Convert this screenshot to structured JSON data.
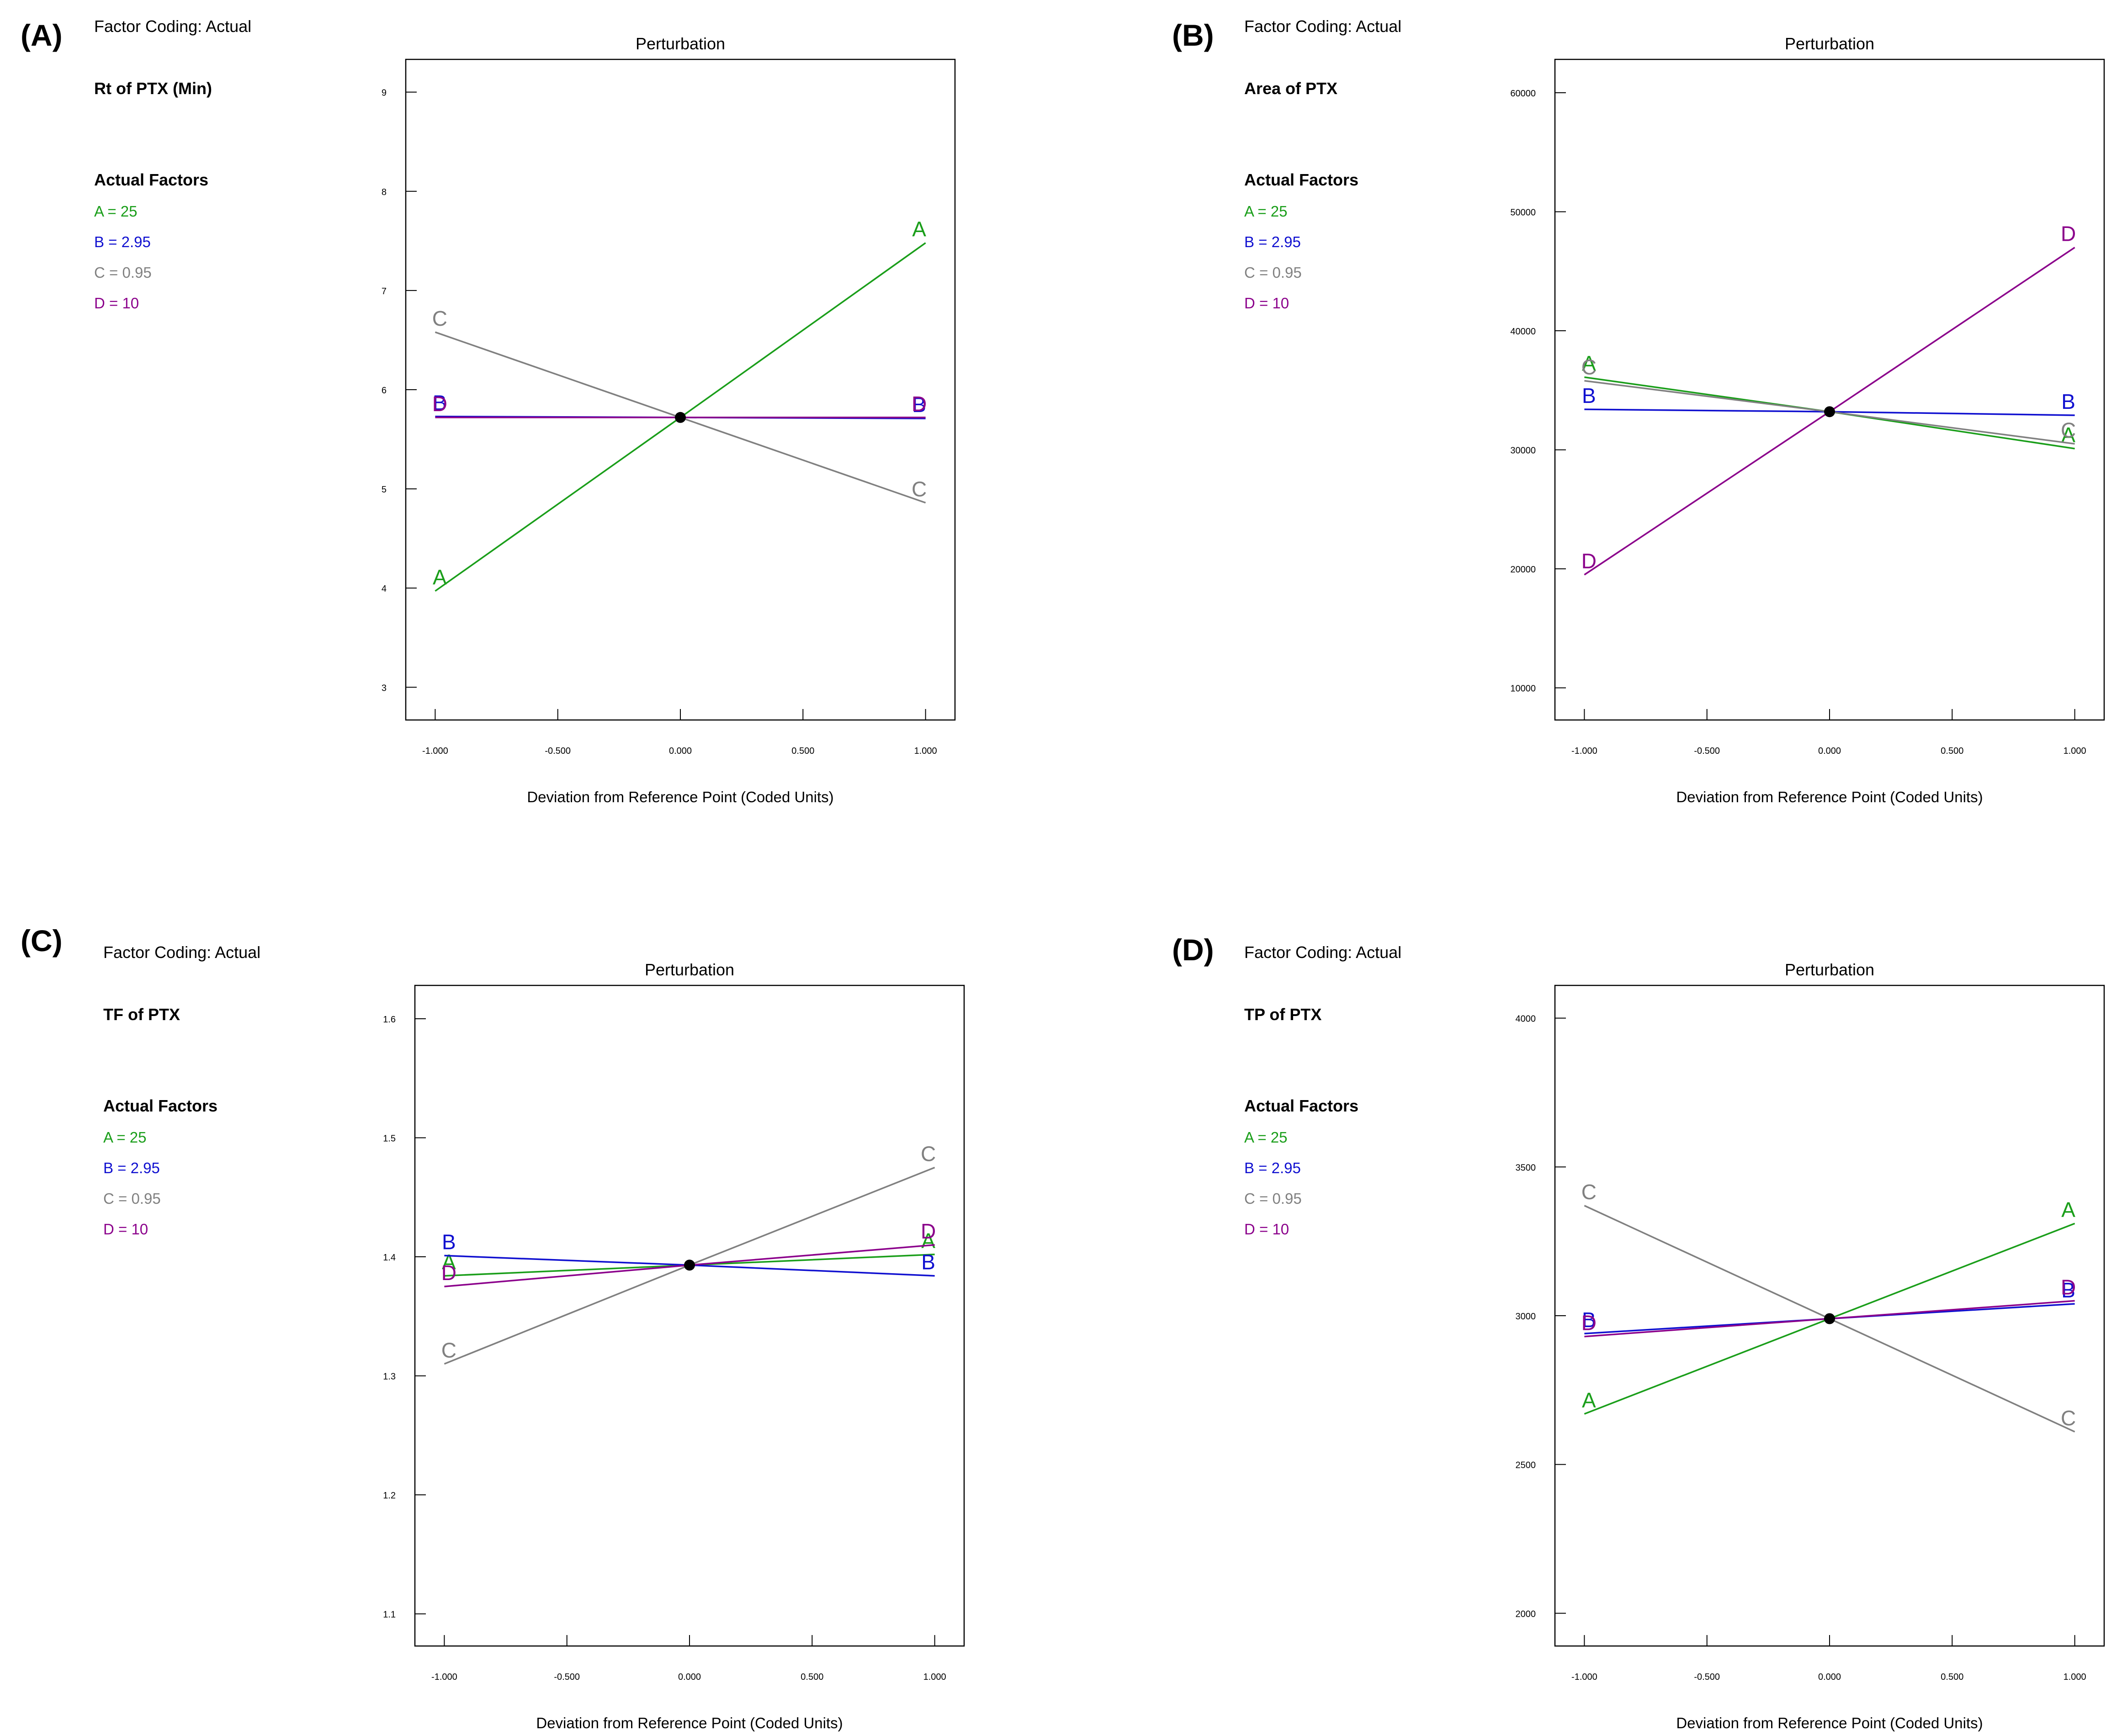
{
  "colors": {
    "A": "#1a9e1a",
    "B": "#1010d0",
    "C": "#808080",
    "D": "#8b008b",
    "text": "#000000",
    "axis": "#000000"
  },
  "panels_text": [
    {
      "panel_label": "(A)",
      "coding": "Factor Coding: Actual",
      "response": "Rt of PTX (Min)",
      "factors_heading": "Actual Factors",
      "factors": [
        "A = 25",
        "B = 2.95",
        "C = 0.95",
        "D = 10"
      ]
    },
    {
      "panel_label": "(B)",
      "coding": "Factor Coding: Actual",
      "response": "Area of PTX",
      "factors_heading": "Actual Factors",
      "factors": [
        "A = 25",
        "B = 2.95",
        "C = 0.95",
        "D = 10"
      ]
    },
    {
      "panel_label": "(C)",
      "coding": "Factor Coding: Actual",
      "response": "TF of PTX",
      "factors_heading": "Actual Factors",
      "factors": [
        "A = 25",
        "B = 2.95",
        "C = 0.95",
        "D = 10"
      ]
    },
    {
      "panel_label": "(D)",
      "coding": "Factor Coding: Actual",
      "response": "TP of PTX",
      "factors_heading": "Actual Factors",
      "factors": [
        "A = 25",
        "B = 2.95",
        "C = 0.95",
        "D = 10"
      ]
    }
  ],
  "chart_data": [
    {
      "type": "line",
      "title": "Perturbation",
      "xlabel": "Deviation from Reference Point (Coded Units)",
      "ylabel": "",
      "x": [
        -1,
        0,
        1
      ],
      "xticks": [
        "-1.000",
        "-0.500",
        "0.000",
        "0.500",
        "1.000"
      ],
      "xlim": [
        -1.12,
        1.12
      ],
      "yticks": [
        "3",
        "4",
        "5",
        "6",
        "7",
        "8",
        "9"
      ],
      "ylim": [
        2.67,
        9.33
      ],
      "reference_point": [
        0,
        5.72
      ],
      "series": [
        {
          "name": "A",
          "values": [
            3.97,
            5.72,
            7.48
          ]
        },
        {
          "name": "B",
          "values": [
            5.73,
            5.72,
            5.71
          ]
        },
        {
          "name": "C",
          "values": [
            6.58,
            5.72,
            4.86
          ]
        },
        {
          "name": "D",
          "values": [
            5.72,
            5.72,
            5.72
          ]
        }
      ]
    },
    {
      "type": "line",
      "title": "Perturbation",
      "xlabel": "Deviation from Reference Point (Coded Units)",
      "ylabel": "",
      "x": [
        -1,
        0,
        1
      ],
      "xticks": [
        "-1.000",
        "-0.500",
        "0.000",
        "0.500",
        "1.000"
      ],
      "xlim": [
        -1.12,
        1.12
      ],
      "yticks": [
        "10000",
        "20000",
        "30000",
        "40000",
        "50000",
        "60000"
      ],
      "ylim": [
        7300,
        62800
      ],
      "reference_point": [
        0,
        33200
      ],
      "series": [
        {
          "name": "A",
          "values": [
            36100,
            33200,
            30100
          ]
        },
        {
          "name": "B",
          "values": [
            33400,
            33200,
            32900
          ]
        },
        {
          "name": "C",
          "values": [
            35800,
            33200,
            30500
          ]
        },
        {
          "name": "D",
          "values": [
            19500,
            33200,
            47000
          ]
        }
      ]
    },
    {
      "type": "line",
      "title": "Perturbation",
      "xlabel": "Deviation from Reference Point (Coded Units)",
      "ylabel": "",
      "x": [
        -1,
        0,
        1
      ],
      "xticks": [
        "-1.000",
        "-0.500",
        "0.000",
        "0.500",
        "1.000"
      ],
      "xlim": [
        -1.12,
        1.12
      ],
      "yticks": [
        "1.1",
        "1.2",
        "1.3",
        "1.4",
        "1.5",
        "1.6"
      ],
      "ylim": [
        1.073,
        1.628
      ],
      "reference_point": [
        0,
        1.393
      ],
      "series": [
        {
          "name": "A",
          "values": [
            1.384,
            1.393,
            1.402
          ]
        },
        {
          "name": "B",
          "values": [
            1.401,
            1.393,
            1.384
          ]
        },
        {
          "name": "C",
          "values": [
            1.31,
            1.393,
            1.475
          ]
        },
        {
          "name": "D",
          "values": [
            1.375,
            1.393,
            1.41
          ]
        }
      ]
    },
    {
      "type": "line",
      "title": "Perturbation",
      "xlabel": "Deviation from Reference Point (Coded Units)",
      "ylabel": "",
      "x": [
        -1,
        0,
        1
      ],
      "xticks": [
        "-1.000",
        "-0.500",
        "0.000",
        "0.500",
        "1.000"
      ],
      "xlim": [
        -1.12,
        1.12
      ],
      "yticks": [
        "2000",
        "2500",
        "3000",
        "3500",
        "4000"
      ],
      "ylim": [
        1890,
        4110
      ],
      "reference_point": [
        0,
        2990
      ],
      "series": [
        {
          "name": "A",
          "values": [
            2670,
            2990,
            3310
          ]
        },
        {
          "name": "B",
          "values": [
            2940,
            2990,
            3040
          ]
        },
        {
          "name": "C",
          "values": [
            3370,
            2990,
            2610
          ]
        },
        {
          "name": "D",
          "values": [
            2930,
            2990,
            3050
          ]
        }
      ]
    }
  ]
}
